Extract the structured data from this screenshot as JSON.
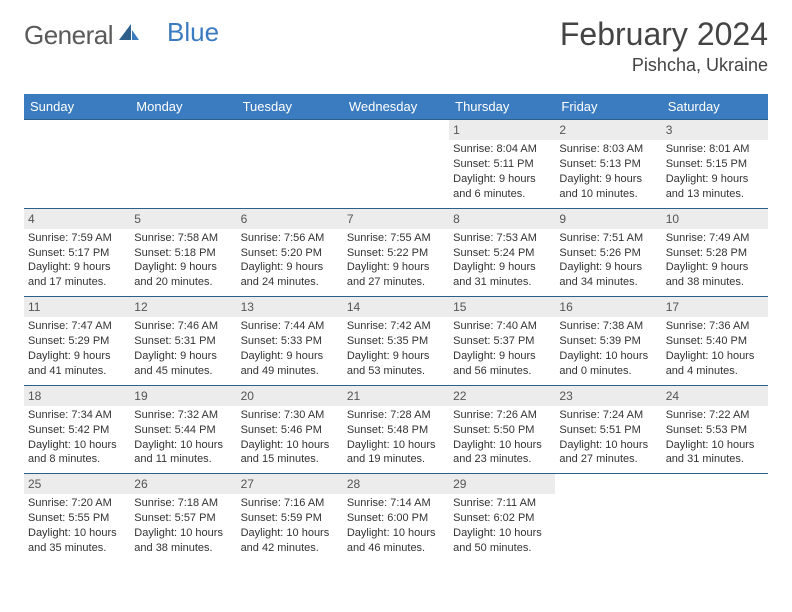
{
  "logo": {
    "text1": "General",
    "text2": "Blue"
  },
  "title": "February 2024",
  "location": "Pishcha, Ukraine",
  "colors": {
    "header_bg": "#3b7bbf",
    "row_border": "#2e5e8a",
    "daynum_bg": "#ececec",
    "text": "#333333"
  },
  "weekdays": [
    "Sunday",
    "Monday",
    "Tuesday",
    "Wednesday",
    "Thursday",
    "Friday",
    "Saturday"
  ],
  "weeks": [
    [
      null,
      null,
      null,
      null,
      {
        "d": "1",
        "sr": "Sunrise: 8:04 AM",
        "ss": "Sunset: 5:11 PM",
        "dl1": "Daylight: 9 hours",
        "dl2": "and 6 minutes."
      },
      {
        "d": "2",
        "sr": "Sunrise: 8:03 AM",
        "ss": "Sunset: 5:13 PM",
        "dl1": "Daylight: 9 hours",
        "dl2": "and 10 minutes."
      },
      {
        "d": "3",
        "sr": "Sunrise: 8:01 AM",
        "ss": "Sunset: 5:15 PM",
        "dl1": "Daylight: 9 hours",
        "dl2": "and 13 minutes."
      }
    ],
    [
      {
        "d": "4",
        "sr": "Sunrise: 7:59 AM",
        "ss": "Sunset: 5:17 PM",
        "dl1": "Daylight: 9 hours",
        "dl2": "and 17 minutes."
      },
      {
        "d": "5",
        "sr": "Sunrise: 7:58 AM",
        "ss": "Sunset: 5:18 PM",
        "dl1": "Daylight: 9 hours",
        "dl2": "and 20 minutes."
      },
      {
        "d": "6",
        "sr": "Sunrise: 7:56 AM",
        "ss": "Sunset: 5:20 PM",
        "dl1": "Daylight: 9 hours",
        "dl2": "and 24 minutes."
      },
      {
        "d": "7",
        "sr": "Sunrise: 7:55 AM",
        "ss": "Sunset: 5:22 PM",
        "dl1": "Daylight: 9 hours",
        "dl2": "and 27 minutes."
      },
      {
        "d": "8",
        "sr": "Sunrise: 7:53 AM",
        "ss": "Sunset: 5:24 PM",
        "dl1": "Daylight: 9 hours",
        "dl2": "and 31 minutes."
      },
      {
        "d": "9",
        "sr": "Sunrise: 7:51 AM",
        "ss": "Sunset: 5:26 PM",
        "dl1": "Daylight: 9 hours",
        "dl2": "and 34 minutes."
      },
      {
        "d": "10",
        "sr": "Sunrise: 7:49 AM",
        "ss": "Sunset: 5:28 PM",
        "dl1": "Daylight: 9 hours",
        "dl2": "and 38 minutes."
      }
    ],
    [
      {
        "d": "11",
        "sr": "Sunrise: 7:47 AM",
        "ss": "Sunset: 5:29 PM",
        "dl1": "Daylight: 9 hours",
        "dl2": "and 41 minutes."
      },
      {
        "d": "12",
        "sr": "Sunrise: 7:46 AM",
        "ss": "Sunset: 5:31 PM",
        "dl1": "Daylight: 9 hours",
        "dl2": "and 45 minutes."
      },
      {
        "d": "13",
        "sr": "Sunrise: 7:44 AM",
        "ss": "Sunset: 5:33 PM",
        "dl1": "Daylight: 9 hours",
        "dl2": "and 49 minutes."
      },
      {
        "d": "14",
        "sr": "Sunrise: 7:42 AM",
        "ss": "Sunset: 5:35 PM",
        "dl1": "Daylight: 9 hours",
        "dl2": "and 53 minutes."
      },
      {
        "d": "15",
        "sr": "Sunrise: 7:40 AM",
        "ss": "Sunset: 5:37 PM",
        "dl1": "Daylight: 9 hours",
        "dl2": "and 56 minutes."
      },
      {
        "d": "16",
        "sr": "Sunrise: 7:38 AM",
        "ss": "Sunset: 5:39 PM",
        "dl1": "Daylight: 10 hours",
        "dl2": "and 0 minutes."
      },
      {
        "d": "17",
        "sr": "Sunrise: 7:36 AM",
        "ss": "Sunset: 5:40 PM",
        "dl1": "Daylight: 10 hours",
        "dl2": "and 4 minutes."
      }
    ],
    [
      {
        "d": "18",
        "sr": "Sunrise: 7:34 AM",
        "ss": "Sunset: 5:42 PM",
        "dl1": "Daylight: 10 hours",
        "dl2": "and 8 minutes."
      },
      {
        "d": "19",
        "sr": "Sunrise: 7:32 AM",
        "ss": "Sunset: 5:44 PM",
        "dl1": "Daylight: 10 hours",
        "dl2": "and 11 minutes."
      },
      {
        "d": "20",
        "sr": "Sunrise: 7:30 AM",
        "ss": "Sunset: 5:46 PM",
        "dl1": "Daylight: 10 hours",
        "dl2": "and 15 minutes."
      },
      {
        "d": "21",
        "sr": "Sunrise: 7:28 AM",
        "ss": "Sunset: 5:48 PM",
        "dl1": "Daylight: 10 hours",
        "dl2": "and 19 minutes."
      },
      {
        "d": "22",
        "sr": "Sunrise: 7:26 AM",
        "ss": "Sunset: 5:50 PM",
        "dl1": "Daylight: 10 hours",
        "dl2": "and 23 minutes."
      },
      {
        "d": "23",
        "sr": "Sunrise: 7:24 AM",
        "ss": "Sunset: 5:51 PM",
        "dl1": "Daylight: 10 hours",
        "dl2": "and 27 minutes."
      },
      {
        "d": "24",
        "sr": "Sunrise: 7:22 AM",
        "ss": "Sunset: 5:53 PM",
        "dl1": "Daylight: 10 hours",
        "dl2": "and 31 minutes."
      }
    ],
    [
      {
        "d": "25",
        "sr": "Sunrise: 7:20 AM",
        "ss": "Sunset: 5:55 PM",
        "dl1": "Daylight: 10 hours",
        "dl2": "and 35 minutes."
      },
      {
        "d": "26",
        "sr": "Sunrise: 7:18 AM",
        "ss": "Sunset: 5:57 PM",
        "dl1": "Daylight: 10 hours",
        "dl2": "and 38 minutes."
      },
      {
        "d": "27",
        "sr": "Sunrise: 7:16 AM",
        "ss": "Sunset: 5:59 PM",
        "dl1": "Daylight: 10 hours",
        "dl2": "and 42 minutes."
      },
      {
        "d": "28",
        "sr": "Sunrise: 7:14 AM",
        "ss": "Sunset: 6:00 PM",
        "dl1": "Daylight: 10 hours",
        "dl2": "and 46 minutes."
      },
      {
        "d": "29",
        "sr": "Sunrise: 7:11 AM",
        "ss": "Sunset: 6:02 PM",
        "dl1": "Daylight: 10 hours",
        "dl2": "and 50 minutes."
      },
      null,
      null
    ]
  ]
}
